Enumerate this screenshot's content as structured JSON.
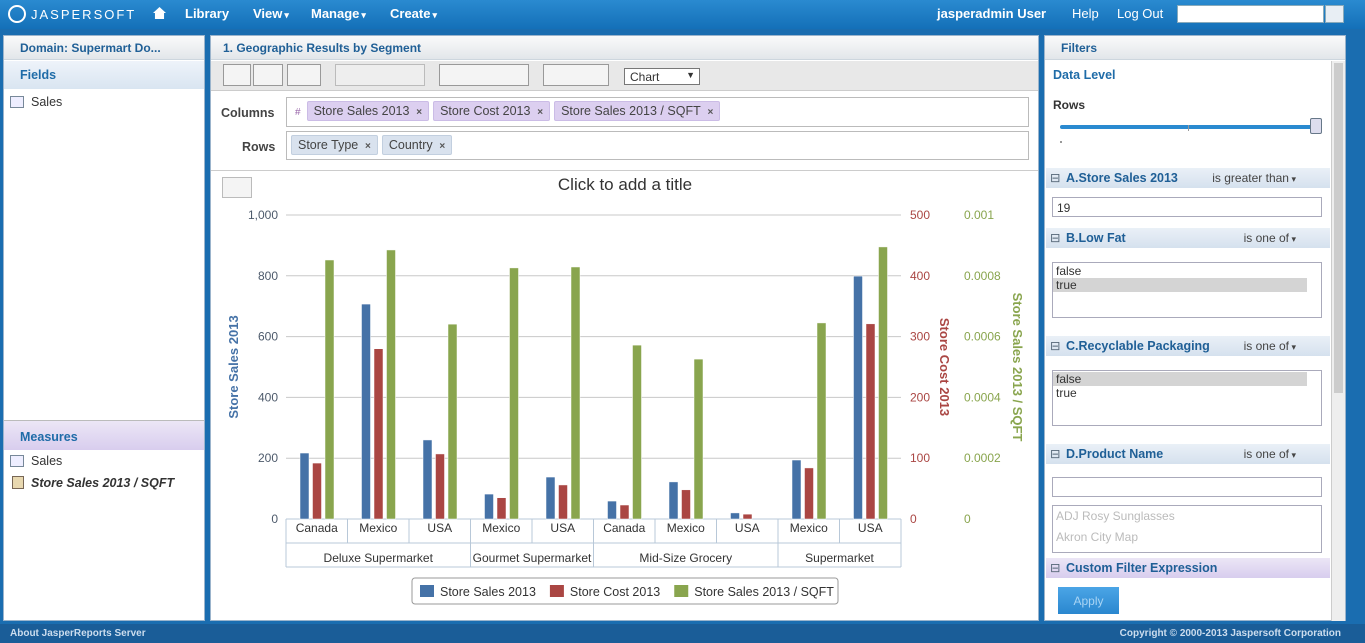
{
  "nav": {
    "logo": "JASPERSOFT",
    "menu": [
      "Library",
      "View",
      "Manage",
      "Create"
    ],
    "user": "jasperadmin User",
    "links": [
      "Help",
      "Log Out"
    ]
  },
  "left_panel": {
    "domain": "Domain: Supermart Do...",
    "fields": {
      "title": "Fields",
      "items": [
        "Sales"
      ]
    },
    "measures": {
      "title": "Measures",
      "items": [
        "Sales",
        "Store Sales 2013 / SQFT"
      ]
    }
  },
  "report": {
    "title": "1. Geographic Results by Segment",
    "view_type": "Chart",
    "columns": {
      "label": "Columns",
      "marker": "#",
      "items": [
        "Store Sales 2013",
        "Store Cost 2013",
        "Store Sales 2013 / SQFT"
      ]
    },
    "rows": {
      "label": "Rows",
      "items": [
        "Store Type",
        "Country"
      ]
    }
  },
  "chart_data": {
    "type": "bar",
    "title": "Click to add a title",
    "y_label": "Store Sales 2013",
    "y2_label": "Store Cost 2013",
    "y3_label": "Store Sales 2013 / SQFT",
    "groups": [
      {
        "name": "Deluxe Supermarket",
        "categories": [
          "Canada",
          "Mexico",
          "USA"
        ]
      },
      {
        "name": "Gourmet Supermarket",
        "categories": [
          "Mexico",
          "USA"
        ]
      },
      {
        "name": "Mid-Size Grocery",
        "categories": [
          "Canada",
          "Mexico",
          "USA"
        ]
      },
      {
        "name": "Supermarket",
        "categories": [
          "Mexico",
          "USA"
        ]
      }
    ],
    "series": [
      {
        "name": "Store Sales 2013",
        "color": "#4572a7",
        "axis": "y",
        "values": [
          217,
          707,
          260,
          82,
          138,
          59,
          122,
          20,
          194,
          799
        ]
      },
      {
        "name": "Store Cost 2013",
        "color": "#aa4643",
        "axis": "y2",
        "values": [
          92,
          280,
          107,
          35,
          56,
          23,
          48,
          8,
          84,
          321
        ]
      },
      {
        "name": "Store Sales 2013 / SQFT",
        "color": "#89a54e",
        "axis": "y3",
        "values": [
          0.000852,
          0.000885,
          0.000641,
          0.000826,
          0.000829,
          0.000572,
          0.000526,
          null,
          0.000645,
          0.000895
        ]
      }
    ],
    "ylim": [
      0,
      1000
    ],
    "yticks": [
      0,
      200,
      400,
      600,
      800,
      {
        "value": 1000,
        "label": "1,000"
      }
    ],
    "y2lim": [
      0,
      500
    ],
    "y2ticks": [
      0,
      100,
      200,
      300,
      400,
      500
    ],
    "y3lim": [
      0,
      0.001
    ],
    "y3ticks": [
      0,
      0.0002,
      0.0004,
      0.0006,
      0.0008,
      0.001
    ],
    "grid": true
  },
  "filters": {
    "title": "Filters",
    "data_level": "Data Level",
    "level_label": "Rows",
    "items": [
      {
        "name": "A.Store Sales 2013",
        "operator": "is greater than",
        "value": "19"
      },
      {
        "name": "B.Low Fat",
        "operator": "is one of",
        "options": [
          {
            "label": "false",
            "selected": false
          },
          {
            "label": "true",
            "selected": true
          }
        ]
      },
      {
        "name": "C.Recyclable Packaging",
        "operator": "is one of",
        "options": [
          {
            "label": "false",
            "selected": true
          },
          {
            "label": "true",
            "selected": false
          }
        ]
      },
      {
        "name": "D.Product Name",
        "operator": "is one of",
        "options": [
          {
            "label": "ADJ Rosy Sunglasses",
            "selected": false
          },
          {
            "label": "Akron City Map",
            "selected": false
          }
        ]
      }
    ],
    "custom": "Custom Filter Expression",
    "apply": "Apply"
  },
  "footer": {
    "about": "About JasperReports Server",
    "copyright": "Copyright © 2000-2013 Jaspersoft Corporation"
  }
}
